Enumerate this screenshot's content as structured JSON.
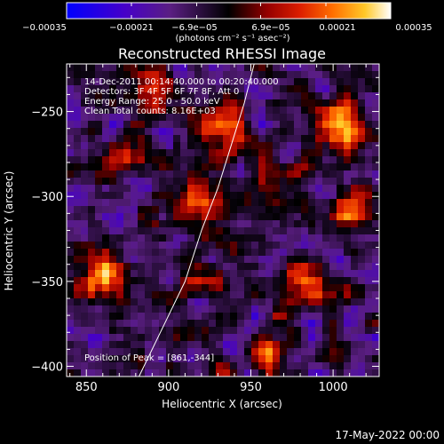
{
  "chart_data": {
    "type": "heatmap",
    "title": "Reconstructed RHESSI Image",
    "xlabel": "Heliocentric X (arcsec)",
    "ylabel": "Heliocentric Y (arcsec)",
    "xlim": [
      838,
      1028
    ],
    "ylim": [
      -406,
      -222
    ],
    "xticks": [
      850,
      900,
      950,
      1000
    ],
    "yticks": [
      -250,
      -300,
      -350,
      -400
    ],
    "xtick_labels": [
      "850",
      "900",
      "950",
      "1000"
    ],
    "ytick_labels": [
      "−250",
      "−300",
      "−350",
      "−400"
    ],
    "colorbar": {
      "range": [
        -0.00035,
        0.00035
      ],
      "ticks": [
        -0.00035,
        -0.00021,
        -6.9e-05,
        6.9e-05,
        0.00021,
        0.00035
      ],
      "tick_labels": [
        "−0.00035",
        "−0.00021",
        "−6.9e−05",
        "6.9e−05",
        "0.00021",
        "0.00035"
      ],
      "units": "(photons cm⁻² s⁻¹ asec⁻²)"
    },
    "annotations": [
      "14-Dec-2011 00:14:40.000 to 00:20:40.000",
      "Detectors: 3F 4F 5F 6F 7F 8F, Att 0",
      "Energy Range: 25.0 - 50.0 keV",
      "Clean    Total counts: 8.16E+03"
    ],
    "peak_position_text": "Position of Peak = [861,-344]",
    "bright_sources": [
      {
        "x": 860,
        "y": -345,
        "level": 1.0
      },
      {
        "x": 930,
        "y": -260,
        "level": 0.75
      },
      {
        "x": 1005,
        "y": -260,
        "level": 0.85
      },
      {
        "x": 1010,
        "y": -305,
        "level": 0.65
      },
      {
        "x": 915,
        "y": -300,
        "level": 0.55
      },
      {
        "x": 875,
        "y": -275,
        "level": 0.5
      },
      {
        "x": 960,
        "y": -300,
        "level": 0.45
      },
      {
        "x": 925,
        "y": -355,
        "level": 0.45
      },
      {
        "x": 985,
        "y": -355,
        "level": 0.5
      },
      {
        "x": 960,
        "y": -395,
        "level": 0.5
      },
      {
        "x": 890,
        "y": -235,
        "level": 0.5
      }
    ],
    "limb_curve": [
      [
        882,
        -406
      ],
      [
        895,
        -380
      ],
      [
        910,
        -350
      ],
      [
        920,
        -320
      ],
      [
        930,
        -295
      ],
      [
        938,
        -270
      ],
      [
        946,
        -245
      ],
      [
        952,
        -222
      ]
    ]
  },
  "footer": {
    "date": "17-May-2022 00:00"
  }
}
